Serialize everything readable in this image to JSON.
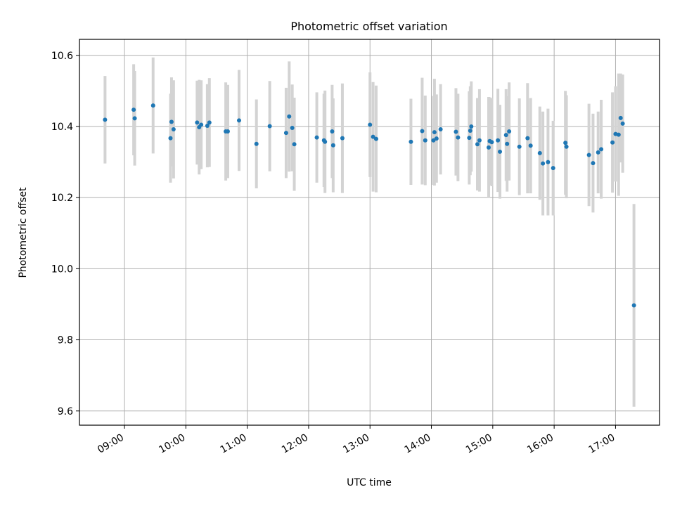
{
  "chart_data": {
    "type": "scatter",
    "title": "Photometric offset variation",
    "xlabel": "UTC time",
    "ylabel": "Photometric offset",
    "xlim": [
      "08:16",
      "17:43"
    ],
    "ylim": [
      9.56,
      10.645
    ],
    "grid": true,
    "x_ticks": [
      "09:00",
      "10:00",
      "11:00",
      "12:00",
      "13:00",
      "14:00",
      "15:00",
      "16:00",
      "17:00"
    ],
    "y_ticks": [
      9.6,
      9.8,
      10.0,
      10.2,
      10.4,
      10.6
    ],
    "y_tick_labels": [
      "9.6",
      "9.8",
      "10.0",
      "10.2",
      "10.4",
      "10.6"
    ],
    "point_color": "#1f77b4",
    "errorbar_color": "#d3d3d3",
    "series": [
      {
        "x": [
          "08:41",
          "09:09",
          "09:10",
          "09:28",
          "09:45",
          "09:46",
          "09:48",
          "10:11",
          "10:13",
          "10:15",
          "10:21",
          "10:23",
          "10:39",
          "10:41",
          "10:52",
          "11:09",
          "11:22",
          "11:38",
          "11:41",
          "11:44",
          "11:46",
          "12:08",
          "12:15",
          "12:16",
          "12:23",
          "12:24",
          "12:33",
          "13:00",
          "13:03",
          "13:06",
          "13:40",
          "13:51",
          "13:54",
          "14:02",
          "14:03",
          "14:05",
          "14:09",
          "14:24",
          "14:26",
          "14:37",
          "14:38",
          "14:39",
          "14:45",
          "14:47",
          "14:56",
          "14:57",
          "14:59",
          "15:05",
          "15:07",
          "15:13",
          "15:14",
          "15:16",
          "15:26",
          "15:34",
          "15:37",
          "15:46",
          "15:49",
          "15:54",
          "15:59",
          "16:11",
          "16:12",
          "16:34",
          "16:38",
          "16:43",
          "16:46",
          "16:57",
          "17:00",
          "17:03",
          "17:05",
          "17:07",
          "17:18"
        ],
        "y": [
          10.419,
          10.447,
          10.423,
          10.459,
          10.367,
          10.413,
          10.392,
          10.411,
          10.398,
          10.405,
          10.402,
          10.411,
          10.386,
          10.386,
          10.417,
          10.351,
          10.401,
          10.382,
          10.428,
          10.396,
          10.35,
          10.369,
          10.361,
          10.357,
          10.386,
          10.347,
          10.367,
          10.405,
          10.371,
          10.365,
          10.357,
          10.387,
          10.361,
          10.361,
          10.384,
          10.366,
          10.392,
          10.385,
          10.369,
          10.368,
          10.388,
          10.4,
          10.35,
          10.361,
          10.341,
          10.359,
          10.356,
          10.361,
          10.329,
          10.376,
          10.351,
          10.386,
          10.343,
          10.367,
          10.346,
          10.325,
          10.296,
          10.3,
          10.283,
          10.354,
          10.343,
          10.32,
          10.297,
          10.327,
          10.336,
          10.355,
          10.379,
          10.377,
          10.424,
          10.408,
          9.897
        ],
        "err": [
          0.123,
          0.128,
          0.133,
          0.135,
          0.125,
          0.125,
          0.138,
          0.118,
          0.133,
          0.125,
          0.117,
          0.125,
          0.138,
          0.131,
          0.142,
          0.125,
          0.127,
          0.127,
          0.155,
          0.122,
          0.131,
          0.127,
          0.131,
          0.144,
          0.131,
          0.132,
          0.154,
          0.147,
          0.154,
          0.15,
          0.121,
          0.15,
          0.126,
          0.125,
          0.15,
          0.124,
          0.127,
          0.123,
          0.123,
          0.131,
          0.125,
          0.127,
          0.13,
          0.144,
          0.142,
          0.123,
          0.124,
          0.145,
          0.132,
          0.129,
          0.134,
          0.138,
          0.136,
          0.155,
          0.134,
          0.131,
          0.146,
          0.15,
          0.133,
          0.146,
          0.145,
          0.144,
          0.139,
          0.115,
          0.139,
          0.141,
          0.134,
          0.172,
          0.125,
          0.138,
          0.285
        ]
      }
    ]
  }
}
